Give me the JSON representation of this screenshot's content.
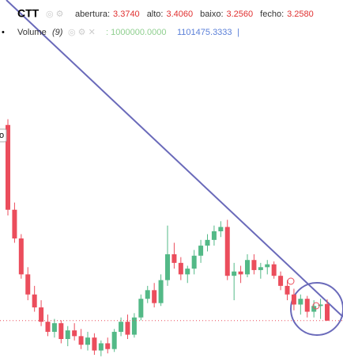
{
  "chart_data": {
    "type": "candlestick",
    "title": "CTT",
    "ohlc_legend": [
      {
        "name": "abertura:",
        "value": {
          "value": 3.374,
          "label": "3.3740"
        }
      },
      {
        "name": "alto:",
        "value": {
          "value": 3.406,
          "label": "3.4060"
        }
      },
      {
        "name": "baixo:",
        "value": {
          "value": 3.256,
          "label": "3.2560"
        }
      },
      {
        "name": "fecho:",
        "value": {
          "value": 3.258,
          "label": "3.2580"
        }
      }
    ],
    "volume_legend": {
      "name": "Volume",
      "length": "(9)",
      "value1": ": 1000000.0000",
      "value2": "1101475.3333",
      "separator": "|"
    },
    "up_color": "#53b987",
    "down_color": "#eb4d5c",
    "ylim": [
      2.97,
      5.49
    ],
    "open": [
      4.62,
      4.03,
      3.83,
      3.58,
      3.44,
      3.35,
      3.25,
      3.18,
      3.24,
      3.13,
      3.19,
      3.15,
      3.09,
      3.14,
      3.05,
      3.1,
      3.06,
      3.18,
      3.25,
      3.16,
      3.28,
      3.41,
      3.47,
      3.38,
      3.54,
      3.72,
      3.66,
      3.58,
      3.62,
      3.71,
      3.78,
      3.82,
      3.88,
      3.91,
      3.57,
      3.6,
      3.58,
      3.68,
      3.61,
      3.63,
      3.65,
      3.57,
      3.5,
      3.44,
      3.37,
      3.41,
      3.32,
      3.36,
      3.374
    ],
    "high": [
      4.66,
      4.08,
      3.86,
      3.63,
      3.5,
      3.4,
      3.3,
      3.27,
      3.26,
      3.22,
      3.24,
      3.2,
      3.18,
      3.17,
      3.12,
      3.14,
      3.2,
      3.28,
      3.3,
      3.31,
      3.44,
      3.5,
      3.52,
      3.58,
      3.92,
      3.8,
      3.7,
      3.64,
      3.75,
      3.82,
      3.86,
      3.92,
      3.95,
      3.96,
      3.66,
      3.64,
      3.72,
      3.72,
      3.66,
      3.68,
      3.67,
      3.6,
      3.54,
      3.48,
      3.44,
      3.43,
      3.4,
      3.41,
      3.406
    ],
    "low": [
      3.99,
      3.8,
      3.55,
      3.4,
      3.32,
      3.22,
      3.15,
      3.14,
      3.1,
      3.08,
      3.12,
      3.06,
      3.05,
      3.02,
      3.01,
      3.03,
      3.04,
      3.15,
      3.13,
      3.14,
      3.26,
      3.38,
      3.35,
      3.36,
      3.5,
      3.62,
      3.54,
      3.52,
      3.58,
      3.66,
      3.74,
      3.78,
      3.84,
      3.54,
      3.4,
      3.52,
      3.56,
      3.58,
      3.55,
      3.58,
      3.55,
      3.47,
      3.4,
      3.33,
      3.3,
      3.28,
      3.28,
      3.27,
      3.256
    ],
    "close": [
      4.03,
      3.83,
      3.58,
      3.44,
      3.35,
      3.25,
      3.18,
      3.24,
      3.13,
      3.19,
      3.15,
      3.09,
      3.14,
      3.05,
      3.1,
      3.06,
      3.18,
      3.25,
      3.16,
      3.28,
      3.41,
      3.47,
      3.38,
      3.54,
      3.72,
      3.66,
      3.58,
      3.62,
      3.71,
      3.78,
      3.82,
      3.88,
      3.91,
      3.57,
      3.6,
      3.58,
      3.68,
      3.61,
      3.63,
      3.65,
      3.57,
      3.5,
      3.44,
      3.37,
      3.41,
      3.32,
      3.36,
      3.37,
      3.258
    ]
  }
}
